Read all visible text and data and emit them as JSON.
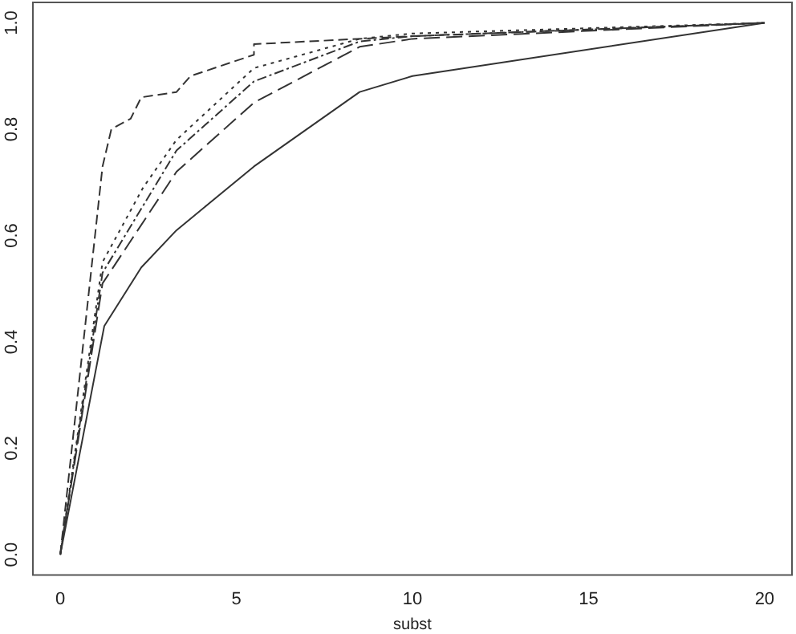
{
  "chart_data": {
    "type": "line",
    "xlabel": "subst",
    "xlim": [
      -0.8,
      20.8
    ],
    "ylim": [
      -0.04,
      1.04
    ],
    "xticks": [
      0,
      5,
      10,
      15,
      20
    ],
    "yticks": [
      {
        "value": 0,
        "label": "0.0"
      },
      {
        "value": 0.2,
        "label": "0.2"
      },
      {
        "value": 0.4,
        "label": "0.4"
      },
      {
        "value": 0.6,
        "label": "0.6"
      },
      {
        "value": 0.8,
        "label": "0.8"
      },
      {
        "value": 1,
        "label": "1.0"
      }
    ],
    "grid": false,
    "legend": false,
    "marker": "none",
    "series": [
      {
        "color": "#333333",
        "line_style": "solid",
        "x": [
          0,
          1.25,
          2.3,
          3.3,
          5.5,
          8.5,
          10,
          20
        ],
        "values": [
          0,
          0.43,
          0.54,
          0.61,
          0.73,
          0.87,
          0.9,
          1
        ]
      },
      {
        "color": "#333333",
        "line_style": "dashed",
        "x": [
          0,
          1.2,
          1.45,
          2.0,
          2.3,
          3.3,
          3.7,
          5.5,
          5.5,
          10,
          20
        ],
        "values": [
          0,
          0.73,
          0.8,
          0.82,
          0.86,
          0.87,
          0.9,
          0.94,
          0.96,
          0.975,
          1
        ]
      },
      {
        "color": "#333333",
        "line_style": "dotted",
        "x": [
          0,
          1.2,
          2.35,
          3.3,
          5.5,
          8.5,
          10,
          20
        ],
        "values": [
          0,
          0.55,
          0.69,
          0.78,
          0.915,
          0.97,
          0.98,
          1
        ]
      },
      {
        "color": "#333333",
        "line_style": "dashdot",
        "x": [
          0,
          1.2,
          3.3,
          5.5,
          8.5,
          10,
          20
        ],
        "values": [
          0,
          0.53,
          0.76,
          0.89,
          0.965,
          0.975,
          1
        ]
      },
      {
        "color": "#333333",
        "line_style": "longdash",
        "x": [
          0,
          1.2,
          3.3,
          5.5,
          8.5,
          10,
          20
        ],
        "values": [
          0,
          0.51,
          0.72,
          0.85,
          0.955,
          0.97,
          1
        ]
      }
    ]
  }
}
